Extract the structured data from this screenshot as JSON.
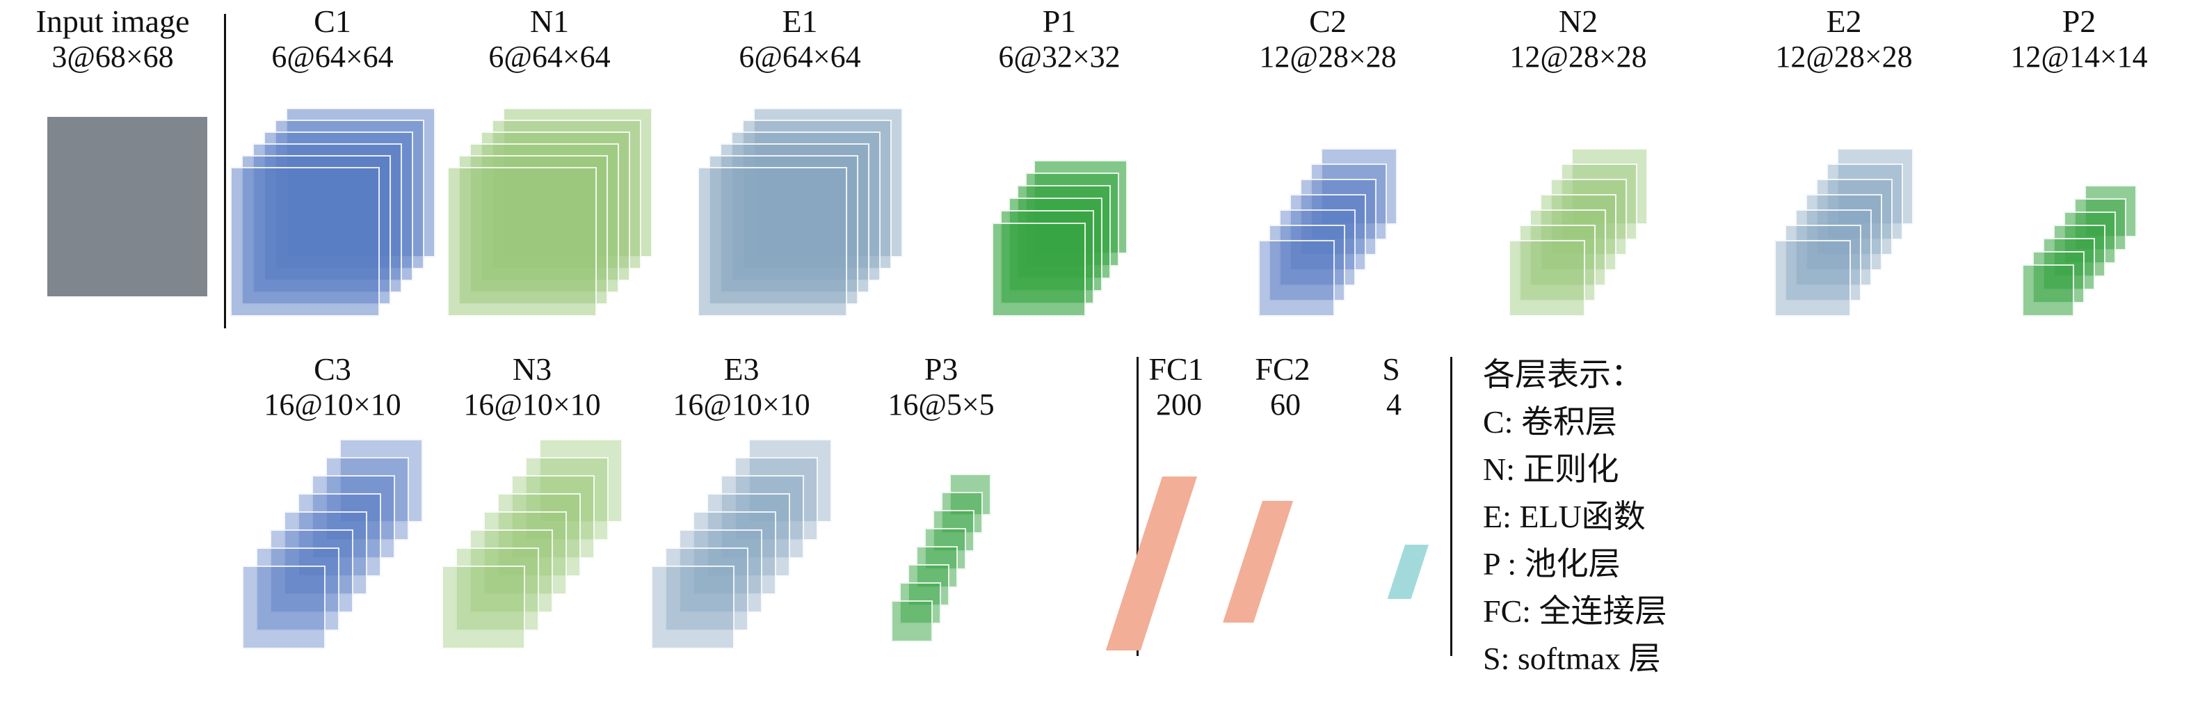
{
  "input": {
    "label": "Input image",
    "size_label": "3@68×68"
  },
  "rows": [
    {
      "id": "row1",
      "layers": [
        {
          "name": "C1",
          "size_label": "6@64×64",
          "type": "conv",
          "count": 6
        },
        {
          "name": "N1",
          "size_label": "6@64×64",
          "type": "norm",
          "count": 6
        },
        {
          "name": "E1",
          "size_label": "6@64×64",
          "type": "elu",
          "count": 6
        },
        {
          "name": "P1",
          "size_label": "6@32×32",
          "type": "pool",
          "count": 6
        },
        {
          "name": "C2",
          "size_label": "12@28×28",
          "type": "conv",
          "count": 12
        },
        {
          "name": "N2",
          "size_label": "12@28×28",
          "type": "norm",
          "count": 12
        },
        {
          "name": "E2",
          "size_label": "12@28×28",
          "type": "elu",
          "count": 12
        },
        {
          "name": "P2",
          "size_label": "12@14×14",
          "type": "pool",
          "count": 12
        }
      ]
    },
    {
      "id": "row2",
      "layers": [
        {
          "name": "C3",
          "size_label": "16@10×10",
          "type": "conv",
          "count": 16
        },
        {
          "name": "N3",
          "size_label": "16@10×10",
          "type": "norm",
          "count": 16
        },
        {
          "name": "E3",
          "size_label": "16@10×10",
          "type": "elu",
          "count": 16
        },
        {
          "name": "P3",
          "size_label": "16@5×5",
          "type": "pool",
          "count": 16
        }
      ]
    }
  ],
  "fc": {
    "layers": [
      {
        "name": "FC1",
        "size_label": "200",
        "type": "fc"
      },
      {
        "name": "FC2",
        "size_label": "60",
        "type": "fc"
      },
      {
        "name": "S",
        "size_label": "4",
        "type": "softmax"
      }
    ]
  },
  "legend": {
    "title": "各层表示：",
    "items": [
      "C: 卷积层",
      "N: 正则化",
      "E: ELU函数",
      "P : 池化层",
      "FC: 全连接层",
      "S: softmax 层"
    ]
  },
  "colors": {
    "conv": "88,124,196",
    "norm": "154,200,122",
    "elu": "136,166,192",
    "pool": "56,164,68",
    "fc": "#f2ae96",
    "softmax": "#a2dadc",
    "input": "#80868e",
    "line": "#111111",
    "text": "#111111"
  }
}
